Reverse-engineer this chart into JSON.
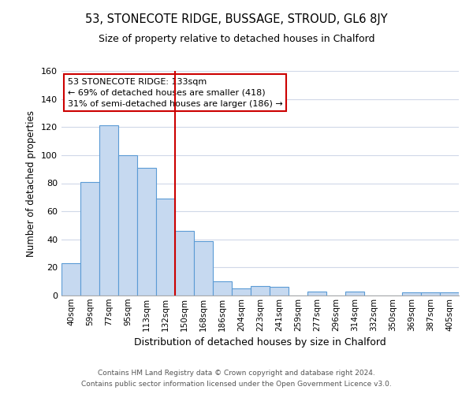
{
  "title": "53, STONECOTE RIDGE, BUSSAGE, STROUD, GL6 8JY",
  "subtitle": "Size of property relative to detached houses in Chalford",
  "xlabel": "Distribution of detached houses by size in Chalford",
  "ylabel": "Number of detached properties",
  "bar_labels": [
    "40sqm",
    "59sqm",
    "77sqm",
    "95sqm",
    "113sqm",
    "132sqm",
    "150sqm",
    "168sqm",
    "186sqm",
    "204sqm",
    "223sqm",
    "241sqm",
    "259sqm",
    "277sqm",
    "296sqm",
    "314sqm",
    "332sqm",
    "350sqm",
    "369sqm",
    "387sqm",
    "405sqm"
  ],
  "bar_values": [
    23,
    81,
    121,
    100,
    91,
    69,
    46,
    39,
    10,
    5,
    7,
    6,
    0,
    3,
    0,
    3,
    0,
    0,
    2,
    2,
    2
  ],
  "bar_color": "#c6d9f0",
  "bar_edge_color": "#5b9bd5",
  "vline_x": 5.5,
  "vline_color": "#cc0000",
  "ylim": [
    0,
    160
  ],
  "yticks": [
    0,
    20,
    40,
    60,
    80,
    100,
    120,
    140,
    160
  ],
  "annotation_title": "53 STONECOTE RIDGE: 133sqm",
  "annotation_line1": "← 69% of detached houses are smaller (418)",
  "annotation_line2": "31% of semi-detached houses are larger (186) →",
  "annotation_box_color": "#ffffff",
  "annotation_box_edge": "#cc0000",
  "footer_line1": "Contains HM Land Registry data © Crown copyright and database right 2024.",
  "footer_line2": "Contains public sector information licensed under the Open Government Licence v3.0.",
  "background_color": "#ffffff",
  "grid_color": "#d0d8e8"
}
